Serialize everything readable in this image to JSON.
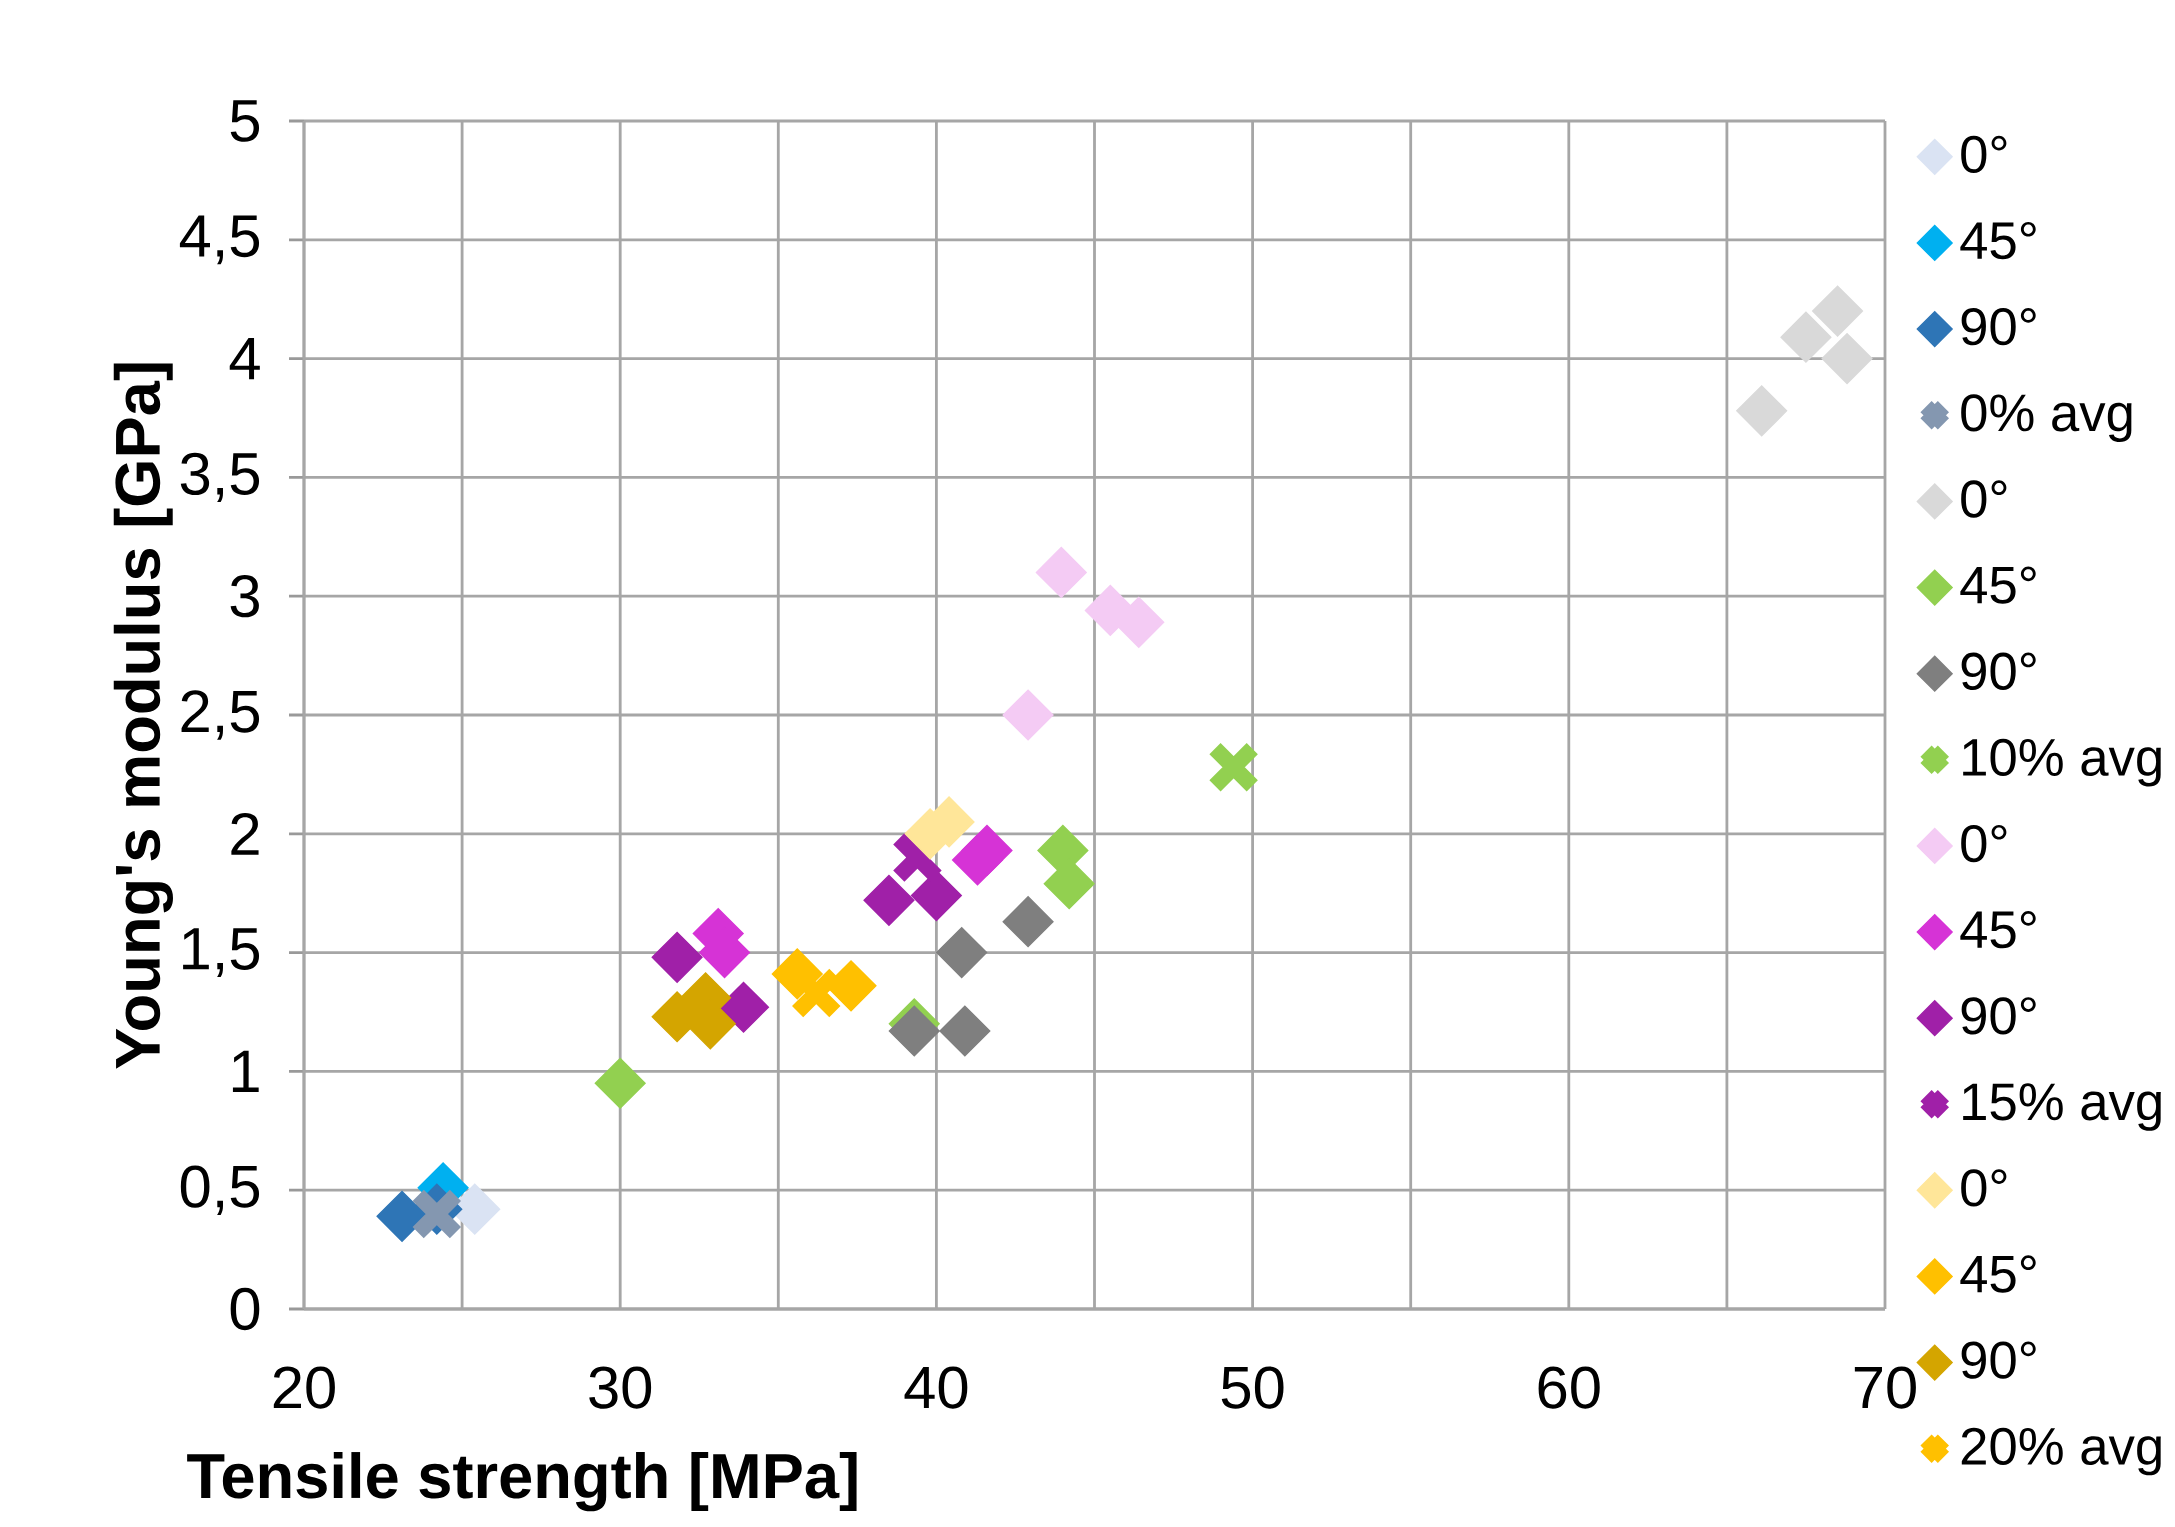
{
  "chart_data": {
    "type": "scatter",
    "xlabel": "Tensile strength [MPa]",
    "ylabel": "Young's modulus [GPa]",
    "xlim": [
      20,
      70
    ],
    "ylim": [
      0,
      5
    ],
    "xticks": [
      20,
      {
        "value": 25,
        "label": null
      },
      30,
      {
        "value": 35,
        "label": null
      },
      40,
      {
        "value": 45,
        "label": null
      },
      50,
      {
        "value": 55,
        "label": null
      },
      60,
      {
        "value": 65,
        "label": null
      },
      70
    ],
    "yticks": [
      0,
      {
        "value": 0.5,
        "label": "0,5"
      },
      1,
      {
        "value": 1.5,
        "label": "1,5"
      },
      2,
      {
        "value": 2.5,
        "label": "2,5"
      },
      3,
      {
        "value": 3.5,
        "label": "3,5"
      },
      4,
      {
        "value": 4.5,
        "label": "4,5"
      },
      5
    ],
    "grid": true,
    "legend": "right",
    "series": [
      {
        "name": "0°",
        "color": "#dae3f3",
        "marker": "diamond",
        "x": [
          25.4
        ],
        "values": [
          0.42
        ]
      },
      {
        "name": "45°",
        "color": "#00b0f0",
        "marker": "diamond",
        "x": [
          24.4
        ],
        "values": [
          0.51
        ]
      },
      {
        "name": "90°",
        "color": "#2e75b6",
        "marker": "diamond",
        "x": [
          23.1,
          24.2
        ],
        "values": [
          0.39,
          0.42
        ]
      },
      {
        "name": "0% avg",
        "color": "#8497b0",
        "marker": "cross",
        "x": [
          24.2
        ],
        "values": [
          0.4
        ]
      },
      {
        "name": "0°",
        "color": "#d9d9d9",
        "marker": "diamond",
        "x": [
          66.1,
          67.5,
          68.5,
          68.8
        ],
        "values": [
          3.78,
          4.09,
          4.2,
          4.0
        ]
      },
      {
        "name": "45°",
        "color": "#92d050",
        "marker": "diamond",
        "x": [
          30.0,
          39.3,
          44.0,
          44.2
        ],
        "values": [
          0.95,
          1.2,
          1.93,
          1.79
        ]
      },
      {
        "name": "90°",
        "color": "#7f7f7f",
        "marker": "diamond",
        "x": [
          39.3,
          40.9,
          40.8,
          42.9
        ],
        "values": [
          1.17,
          1.17,
          1.5,
          1.63
        ]
      },
      {
        "name": "10% avg",
        "color": "#92d050",
        "marker": "cross",
        "x": [
          49.4
        ],
        "values": [
          2.28
        ]
      },
      {
        "name": "0°",
        "color": "#f4cbf4",
        "marker": "diamond",
        "x": [
          43.95,
          45.5,
          46.4,
          42.9
        ],
        "values": [
          3.1,
          2.94,
          2.89,
          2.5
        ]
      },
      {
        "name": "45°",
        "color": "#d633d6",
        "marker": "diamond",
        "x": [
          33.1,
          33.3,
          41.3,
          41.6
        ],
        "values": [
          1.58,
          1.5,
          1.89,
          1.93
        ]
      },
      {
        "name": "90°",
        "color": "#a020a8",
        "marker": "diamond",
        "x": [
          31.8,
          33.9,
          38.5,
          40.0
        ],
        "values": [
          1.48,
          1.27,
          1.72,
          1.74
        ]
      },
      {
        "name": "15% avg",
        "color": "#a020a8",
        "marker": "cross",
        "x": [
          39.4
        ],
        "values": [
          1.9
        ]
      },
      {
        "name": "0°",
        "color": "#ffe699",
        "marker": "diamond",
        "x": [
          39.8,
          40.4
        ],
        "values": [
          2.0,
          2.05
        ]
      },
      {
        "name": "45°",
        "color": "#ffc000",
        "marker": "diamond",
        "x": [
          35.6,
          37.3
        ],
        "values": [
          1.41,
          1.36
        ]
      },
      {
        "name": "90°",
        "color": "#d4a500",
        "marker": "diamond",
        "x": [
          31.8,
          32.7,
          32.85
        ],
        "values": [
          1.23,
          1.31,
          1.2
        ]
      },
      {
        "name": "20% avg",
        "color": "#ffc000",
        "marker": "cross",
        "x": [
          36.2
        ],
        "values": [
          1.33
        ]
      }
    ]
  }
}
